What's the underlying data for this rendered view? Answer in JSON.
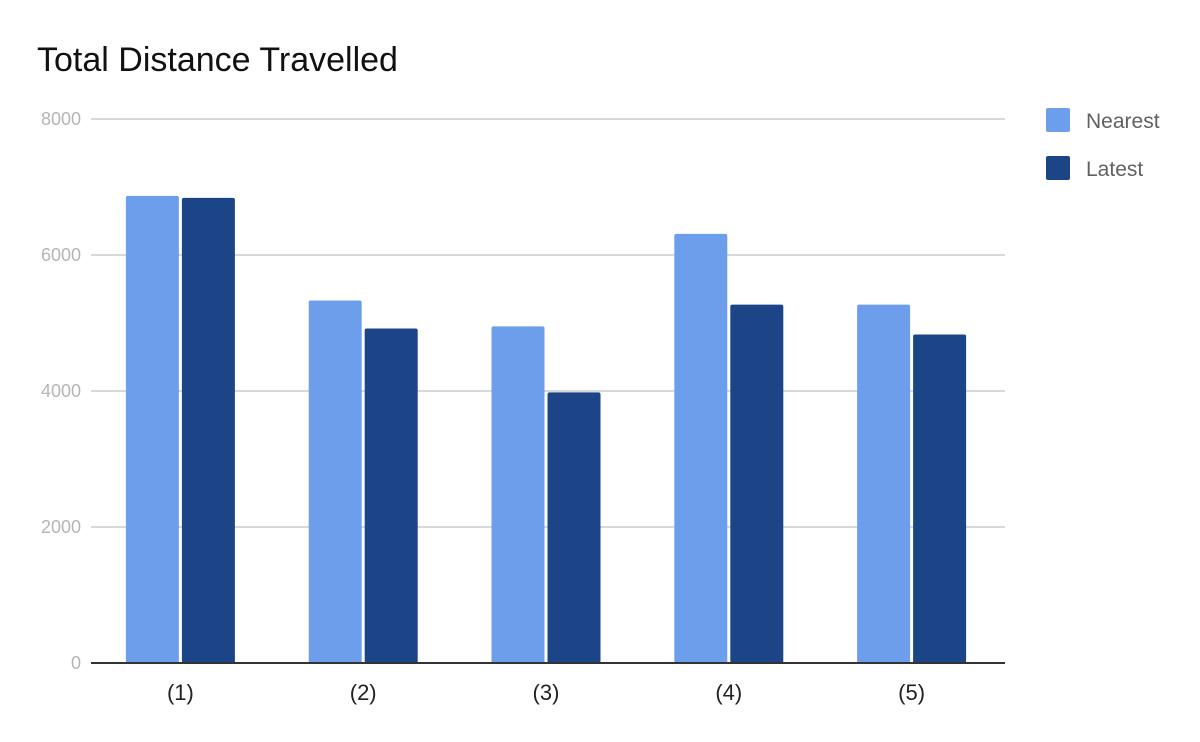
{
  "chart_data": {
    "type": "bar",
    "title": "Total Distance Travelled",
    "xlabel": "",
    "ylabel": "",
    "categories": [
      "(1)",
      "(2)",
      "(3)",
      "(4)",
      "(5)"
    ],
    "series": [
      {
        "name": "Nearest",
        "color": "#6d9eeb",
        "values": [
          6870,
          5330,
          4950,
          6310,
          5270
        ]
      },
      {
        "name": "Latest",
        "color": "#1c4587",
        "values": [
          6840,
          4920,
          3980,
          5270,
          4830
        ]
      }
    ],
    "ylim": [
      0,
      8000
    ],
    "yticks": [
      "0",
      "2000",
      "4000",
      "6000",
      "8000"
    ],
    "grid": true,
    "legend_position": "right"
  }
}
